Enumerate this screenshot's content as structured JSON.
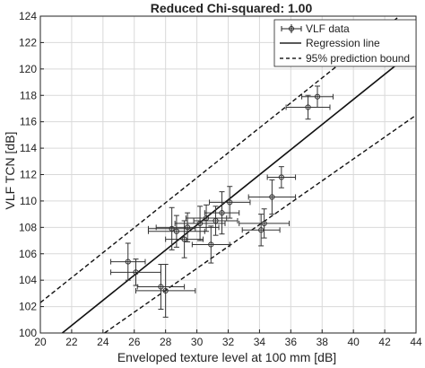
{
  "chart_data": {
    "type": "scatter",
    "title": "Reduced Chi-squared: 1.00",
    "xlabel": "Enveloped texture level at 100 mm [dB]",
    "ylabel": "VLF TCN [dB]",
    "xlim": [
      20,
      44
    ],
    "ylim": [
      100,
      124
    ],
    "x_ticks": [
      20,
      22,
      24,
      26,
      28,
      30,
      32,
      34,
      36,
      38,
      40,
      42,
      44
    ],
    "y_ticks": [
      100,
      102,
      104,
      106,
      108,
      110,
      112,
      114,
      116,
      118,
      120,
      122,
      124
    ],
    "x_tick_labels": [
      "20",
      "22",
      "24",
      "26",
      "28",
      "30",
      "32",
      "34",
      "36",
      "38",
      "40",
      "42",
      "44"
    ],
    "y_tick_labels": [
      "100",
      "102",
      "104",
      "106",
      "108",
      "110",
      "112",
      "114",
      "116",
      "118",
      "120",
      "122",
      "124"
    ],
    "grid": true,
    "legend_position": "top-right",
    "legend": [
      {
        "label": "VLF data",
        "style": "marker-errorbar"
      },
      {
        "label": "Regression line",
        "style": "solid"
      },
      {
        "label": "95% prediction bound",
        "style": "dashed"
      }
    ],
    "points": [
      {
        "x": 25.6,
        "y": 105.4,
        "xerr": 1.1,
        "yerr": 1.4
      },
      {
        "x": 26.1,
        "y": 104.6,
        "xerr": 1.6,
        "yerr": 1.0
      },
      {
        "x": 27.7,
        "y": 103.5,
        "xerr": 1.5,
        "yerr": 1.7
      },
      {
        "x": 28.0,
        "y": 103.2,
        "xerr": 1.9,
        "yerr": 2.0
      },
      {
        "x": 28.4,
        "y": 107.9,
        "xerr": 1.5,
        "yerr": 1.6
      },
      {
        "x": 28.7,
        "y": 107.7,
        "xerr": 1.8,
        "yerr": 1.2
      },
      {
        "x": 29.2,
        "y": 107.1,
        "xerr": 1.2,
        "yerr": 1.4
      },
      {
        "x": 29.4,
        "y": 108.0,
        "xerr": 2.0,
        "yerr": 1.1
      },
      {
        "x": 30.2,
        "y": 108.3,
        "xerr": 1.6,
        "yerr": 1.3
      },
      {
        "x": 30.6,
        "y": 108.7,
        "xerr": 1.3,
        "yerr": 1.0
      },
      {
        "x": 30.9,
        "y": 106.7,
        "xerr": 1.2,
        "yerr": 1.4
      },
      {
        "x": 31.2,
        "y": 108.5,
        "xerr": 1.4,
        "yerr": 1.1
      },
      {
        "x": 31.6,
        "y": 109.1,
        "xerr": 1.1,
        "yerr": 1.6
      },
      {
        "x": 32.1,
        "y": 109.9,
        "xerr": 1.3,
        "yerr": 1.2
      },
      {
        "x": 34.1,
        "y": 107.8,
        "xerr": 1.2,
        "yerr": 1.2
      },
      {
        "x": 34.3,
        "y": 108.3,
        "xerr": 1.6,
        "yerr": 1.1
      },
      {
        "x": 34.8,
        "y": 110.3,
        "xerr": 1.5,
        "yerr": 1.3
      },
      {
        "x": 35.4,
        "y": 111.8,
        "xerr": 0.9,
        "yerr": 0.8
      },
      {
        "x": 37.1,
        "y": 117.1,
        "xerr": 1.4,
        "yerr": 0.9
      },
      {
        "x": 37.7,
        "y": 117.9,
        "xerr": 1.0,
        "yerr": 0.8
      }
    ],
    "regression_line": [
      {
        "x": 21.4,
        "y": 100.0
      },
      {
        "x": 44.0,
        "y": 121.5
      }
    ],
    "prediction_bound_upper": [
      {
        "x": 20.0,
        "y": 102.3
      },
      {
        "x": 44.0,
        "y": 125.0
      }
    ],
    "prediction_bound_lower": [
      {
        "x": 24.1,
        "y": 100.0
      },
      {
        "x": 44.0,
        "y": 116.5
      }
    ]
  }
}
